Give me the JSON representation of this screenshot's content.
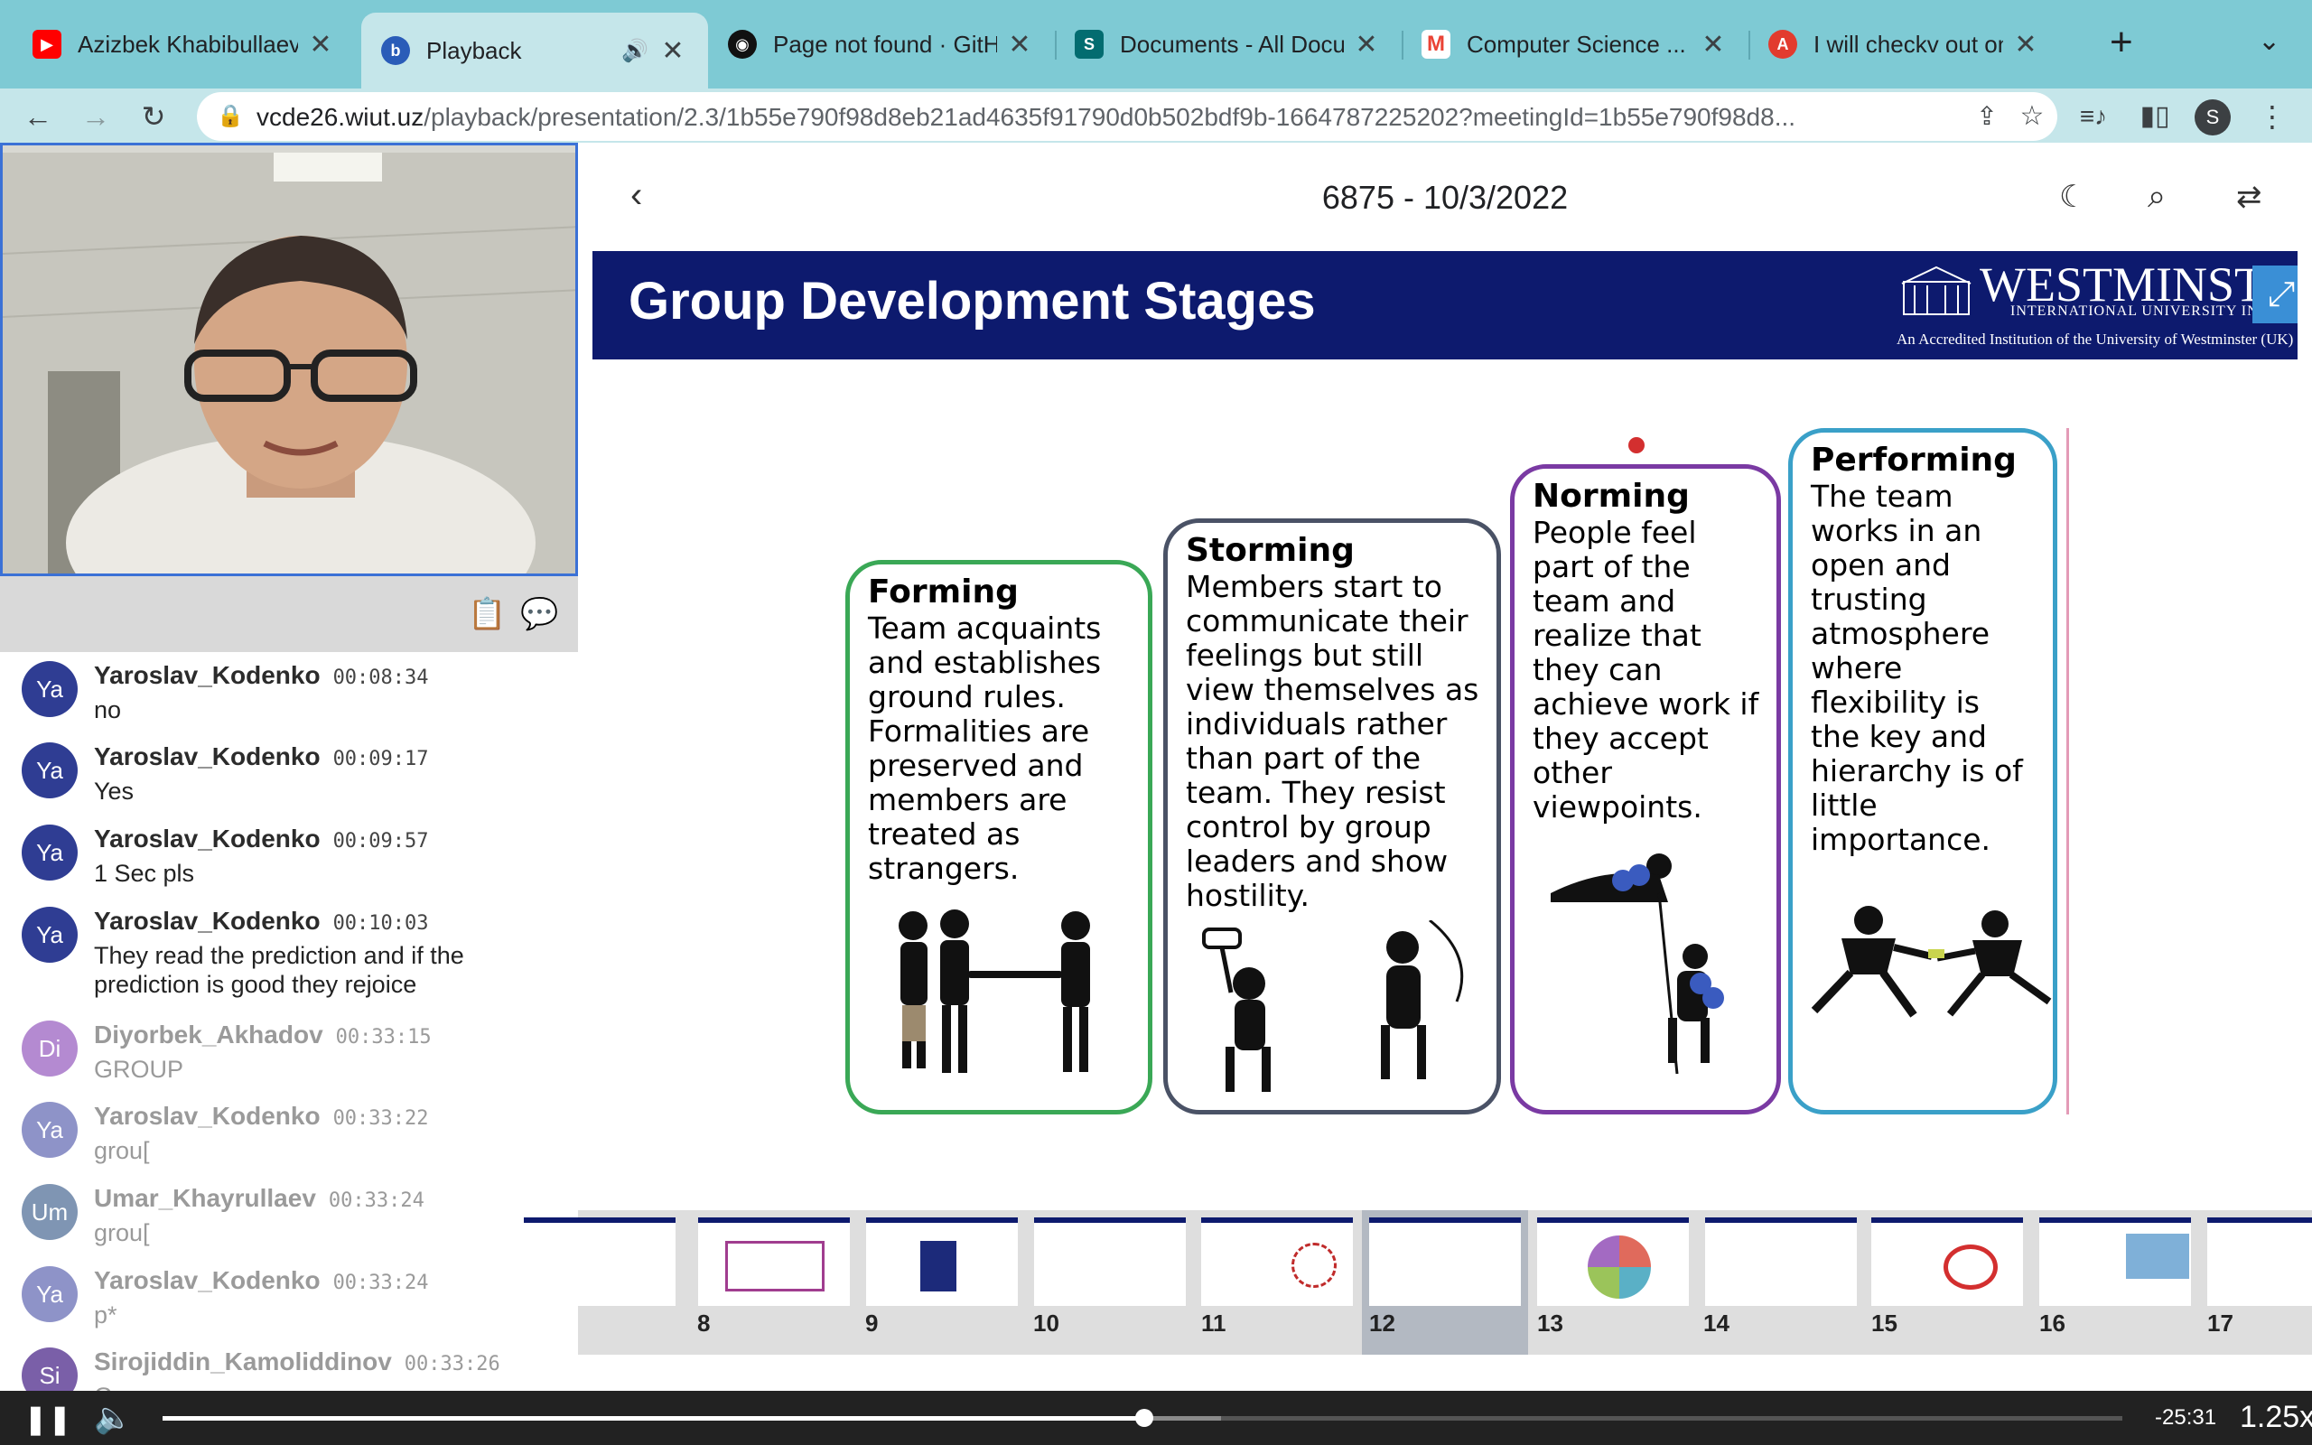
{
  "browser": {
    "tabs": [
      {
        "title": "Azizbek Khabibullaev - ",
        "icon": "youtube-icon",
        "color": "#ff0000"
      },
      {
        "title": "Playback",
        "icon": "bigbluebutton-icon",
        "color": "#2a5cb8",
        "active": true
      },
      {
        "title": "Page not found · GitHub",
        "icon": "github-icon",
        "color": "#111111"
      },
      {
        "title": "Documents - All Docum",
        "icon": "sharepoint-icon",
        "color": "#036c70"
      },
      {
        "title": "Computer Science ... - ",
        "icon": "gmail-icon",
        "color": "#ea4335"
      },
      {
        "title": "I will checkv out once",
        "icon": "app-icon",
        "color": "#e23b2e"
      }
    ],
    "url_host": "vcde26.wiut.uz",
    "url_path": "/playback/presentation/2.3/1b55e790f98d8eb21ad4635f91790d0b502bdf9b-1664787225202?meetingId=1b55e790f98d8...",
    "profile_initial": "S"
  },
  "chat": {
    "messages": [
      {
        "initials": "Ya",
        "name": "Yaroslav_Kodenko",
        "time": "00:08:34",
        "text": "no"
      },
      {
        "initials": "Ya",
        "name": "Yaroslav_Kodenko",
        "time": "00:09:17",
        "text": "Yes"
      },
      {
        "initials": "Ya",
        "name": "Yaroslav_Kodenko",
        "time": "00:09:57",
        "text": "1 Sec pls"
      },
      {
        "initials": "Ya",
        "name": "Yaroslav_Kodenko",
        "time": "00:10:03",
        "text": "They read the prediction and if the prediction is good they rejoice"
      },
      {
        "initials": "Di",
        "name": "Diyorbek_Akhadov",
        "time": "00:33:15",
        "text": "GROUP"
      },
      {
        "initials": "Ya",
        "name": "Yaroslav_Kodenko",
        "time": "00:33:22",
        "text": "grou["
      },
      {
        "initials": "Um",
        "name": "Umar_Khayrullaev",
        "time": "00:33:24",
        "text": "grou["
      },
      {
        "initials": "Ya",
        "name": "Yaroslav_Kodenko",
        "time": "00:33:24",
        "text": "p*"
      },
      {
        "initials": "Si",
        "name": "Sirojiddin_Kamoliddinov",
        "time": "00:33:26",
        "text": "Group"
      }
    ]
  },
  "presentation": {
    "title": "6875 - 10/3/2022",
    "slide": {
      "heading": "Group Development Stages",
      "logo_main": "WESTMINSTER",
      "logo_sub": "INTERNATIONAL UNIVERSITY IN TASHKENT",
      "logo_tag": "An Accredited Institution of the University of Westminster (UK)",
      "stages": [
        {
          "title": "Forming",
          "text": "Team acquaints and establishes ground rules. Formalities are preserved and members are treated as strangers.",
          "color": "#3aa856"
        },
        {
          "title": "Storming",
          "text": "Members start to communicate their feelings but still view themselves as individuals rather than part of the team. They resist control by group leaders and show hostility.",
          "color": "#4a5266"
        },
        {
          "title": "Norming",
          "text": "People feel part of the team and realize that they can achieve work if they accept other viewpoints.",
          "color": "#7a3aa3"
        },
        {
          "title": "Performing",
          "text": "The team works in an open and trusting atmosphere where flexibility is the key and hierarchy is of little importance.",
          "color": "#3aa0c8"
        }
      ]
    },
    "thumbnails": [
      "",
      "8",
      "9",
      "10",
      "11",
      "12",
      "13",
      "14",
      "15",
      "16",
      "17"
    ],
    "current_thumbnail": "12"
  },
  "player": {
    "time_remaining": "-25:31",
    "speed": "1.25x",
    "progress_fraction": 0.501,
    "buffered_fraction": 0.54
  }
}
